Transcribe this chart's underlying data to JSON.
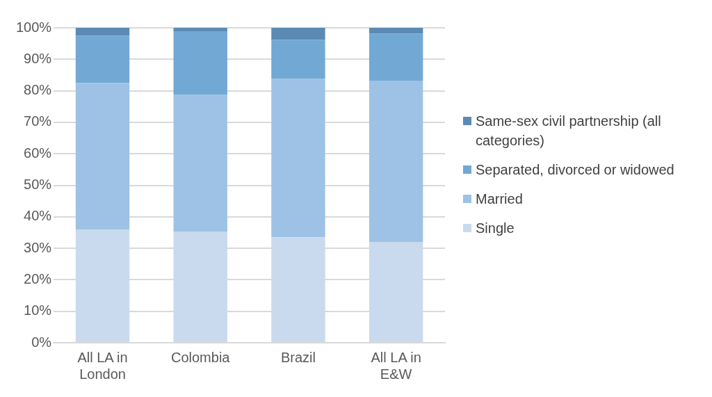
{
  "chart_data": {
    "type": "bar",
    "stacked": true,
    "categories": [
      "All LA in London",
      "Colombia",
      "Brazil",
      "All LA in E&W"
    ],
    "series": [
      {
        "name": "Single",
        "color": "#c9daee",
        "values": [
          36,
          35.3,
          33.5,
          32
        ]
      },
      {
        "name": "Married",
        "color": "#9dc2e5",
        "values": [
          46.5,
          43.4,
          50.3,
          51.2
        ]
      },
      {
        "name": "Separated, divorced or widowed",
        "color": "#72a8d4",
        "values": [
          15,
          20.2,
          12.4,
          15
        ]
      },
      {
        "name": " Same-sex civil partnership (all categories)",
        "color": "#5b8bb5",
        "values": [
          2.5,
          1.1,
          3.8,
          1.8
        ]
      }
    ],
    "ylim": [
      0,
      100
    ],
    "yticks": [
      {
        "value": 0,
        "label": "0%"
      },
      {
        "value": 10,
        "label": "10%"
      },
      {
        "value": 20,
        "label": "20%"
      },
      {
        "value": 30,
        "label": "30%"
      },
      {
        "value": 40,
        "label": "40%"
      },
      {
        "value": 50,
        "label": "50%"
      },
      {
        "value": 60,
        "label": "60%"
      },
      {
        "value": 70,
        "label": "70%"
      },
      {
        "value": 80,
        "label": "80%"
      },
      {
        "value": 90,
        "label": "90%"
      },
      {
        "value": 100,
        "label": "100%"
      }
    ],
    "grid": "y",
    "legend": "right"
  }
}
